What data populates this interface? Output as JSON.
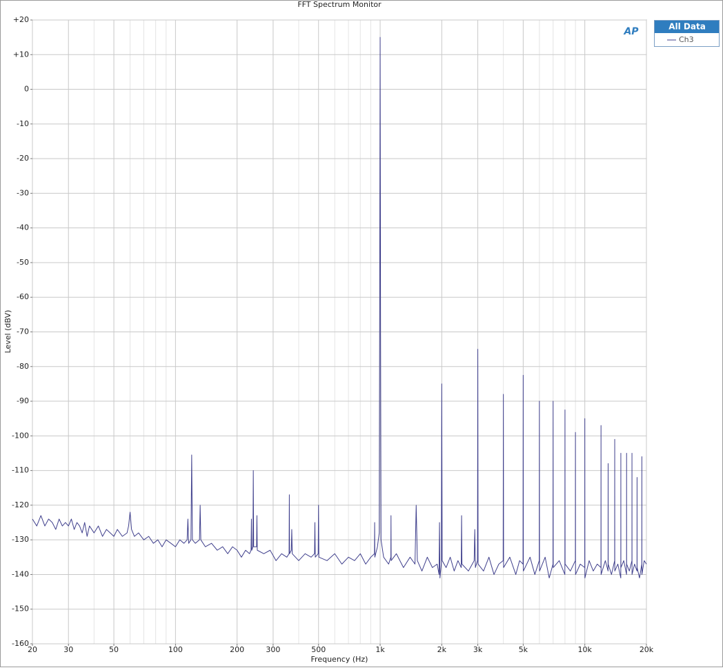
{
  "chart_data": {
    "type": "line",
    "title": "FFT Spectrum Monitor",
    "xlabel": "Frequency (Hz)",
    "ylabel": "Level (dBV)",
    "logo": "AP",
    "legend_title": "All Data",
    "legend": "upper right outside",
    "xscale": "log",
    "grid": true,
    "xlim": [
      20,
      20000
    ],
    "ylim": [
      -160,
      20
    ],
    "xticks": [
      20,
      30,
      50,
      100,
      200,
      300,
      500,
      {
        "value": 1000,
        "label": "1k"
      },
      {
        "value": 2000,
        "label": "2k"
      },
      {
        "value": 3000,
        "label": "3k"
      },
      {
        "value": 5000,
        "label": "5k"
      },
      {
        "value": 10000,
        "label": "10k"
      },
      {
        "value": 20000,
        "label": "20k"
      }
    ],
    "xminorticks": [
      40,
      60,
      70,
      80,
      90,
      400,
      600,
      700,
      800,
      900,
      4000,
      6000,
      7000,
      8000,
      9000
    ],
    "yticks": [
      {
        "value": 20,
        "label": "+20"
      },
      {
        "value": 10,
        "label": "+10"
      },
      0,
      -10,
      -20,
      -30,
      -40,
      -50,
      -60,
      -70,
      -80,
      -90,
      -100,
      -110,
      -120,
      -130,
      -140,
      -150,
      -160
    ],
    "x": [
      20,
      21,
      22,
      23,
      24,
      25,
      26,
      27,
      28,
      29,
      30,
      31,
      32,
      33,
      34,
      35,
      36,
      37,
      38,
      39,
      40,
      42,
      44,
      46,
      48,
      50,
      52,
      55,
      58,
      59,
      60,
      61,
      63,
      66,
      70,
      74,
      78,
      82,
      86,
      90,
      95,
      100,
      105,
      110,
      114,
      115,
      116,
      119,
      120,
      121,
      125,
      131,
      132,
      133,
      140,
      150,
      160,
      170,
      180,
      190,
      200,
      210,
      220,
      230,
      234,
      235,
      236,
      239,
      240,
      241,
      249,
      250,
      251,
      270,
      290,
      310,
      330,
      350,
      359,
      360,
      361,
      368,
      370,
      372,
      400,
      430,
      460,
      478,
      480,
      482,
      498,
      500,
      502,
      550,
      600,
      650,
      700,
      750,
      800,
      850,
      900,
      938,
      940,
      942,
      970,
      990,
      995,
      1000,
      1005,
      1010,
      1040,
      1100,
      1128,
      1130,
      1132,
      1200,
      1300,
      1400,
      1480,
      1500,
      1520,
      1600,
      1700,
      1800,
      1900,
      1940,
      1950,
      1960,
      1990,
      2000,
      2010,
      2100,
      2200,
      2300,
      2400,
      2490,
      2500,
      2510,
      2700,
      2880,
      2900,
      2920,
      2990,
      3000,
      3010,
      3200,
      3400,
      3600,
      3800,
      3990,
      4000,
      4010,
      4300,
      4600,
      4800,
      4990,
      5000,
      5010,
      5400,
      5700,
      5990,
      6000,
      6010,
      6400,
      6700,
      6990,
      7000,
      7010,
      7500,
      7990,
      8000,
      8010,
      8500,
      8990,
      9000,
      9010,
      9500,
      9990,
      10000,
      10010,
      10500,
      11000,
      11500,
      11990,
      12000,
      12010,
      12600,
      12990,
      13000,
      13010,
      13500,
      13990,
      14000,
      14010,
      14500,
      14990,
      15000,
      15010,
      15500,
      15990,
      16000,
      16010,
      16500,
      16990,
      17000,
      17010,
      17500,
      17990,
      18000,
      18010,
      18500,
      18990,
      19000,
      19010,
      19500,
      20000
    ],
    "series": [
      {
        "name": "Ch3",
        "color": "#3f3f8c",
        "values": [
          -124,
          -126,
          -123,
          -126,
          -124,
          -125,
          -127,
          -124,
          -126,
          -125,
          -126,
          -124,
          -127,
          -125,
          -126,
          -128,
          -125,
          -129,
          -126,
          -127,
          -128,
          -126,
          -129,
          -127,
          -128,
          -129,
          -127,
          -129,
          -128,
          -126,
          -122,
          -127,
          -129,
          -128,
          -130,
          -129,
          -131,
          -130,
          -132,
          -130,
          -131,
          -132,
          -130,
          -131,
          -130,
          -124,
          -131,
          -130,
          -105.5,
          -130,
          -131,
          -130,
          -120,
          -130,
          -132,
          -131,
          -133,
          -132,
          -134,
          -132,
          -133,
          -135,
          -133,
          -134,
          -133,
          -124,
          -133,
          -132,
          -110,
          -132,
          -132,
          -123,
          -133,
          -134,
          -133,
          -136,
          -134,
          -135,
          -134,
          -117,
          -134,
          -133,
          -127,
          -134,
          -136,
          -134,
          -135,
          -134,
          -125,
          -135,
          -134,
          -120,
          -135,
          -136,
          -134,
          -137,
          -135,
          -136,
          -134,
          -137,
          -135,
          -134,
          -125,
          -135,
          -132,
          -128,
          -60,
          15,
          -70,
          -130,
          -135,
          -137,
          -135,
          -123,
          -136,
          -134,
          -138,
          -135,
          -137,
          -120,
          -136,
          -139,
          -135,
          -138,
          -137,
          -140,
          -125,
          -141,
          -137,
          -85,
          -136,
          -138,
          -135,
          -139,
          -136,
          -138,
          -123,
          -137,
          -139,
          -136,
          -127,
          -138,
          -136,
          -75,
          -137,
          -139,
          -135,
          -140,
          -137,
          -136,
          -88,
          -138,
          -135,
          -140,
          -136,
          -137,
          -82.5,
          -139,
          -135,
          -140,
          -136,
          -90,
          -139,
          -135,
          -141,
          -137,
          -90,
          -138,
          -136,
          -140,
          -92.5,
          -137,
          -139,
          -136,
          -99,
          -140,
          -137,
          -138,
          -95,
          -141,
          -136,
          -139,
          -137,
          -138,
          -97,
          -140,
          -136,
          -139,
          -108,
          -137,
          -140,
          -136,
          -101,
          -139,
          -137,
          -141,
          -105,
          -138,
          -136,
          -140,
          -105,
          -137,
          -139,
          -136,
          -105,
          -140,
          -137,
          -139,
          -112,
          -138,
          -141,
          -137,
          -106,
          -140,
          -136,
          -137
        ]
      }
    ]
  }
}
